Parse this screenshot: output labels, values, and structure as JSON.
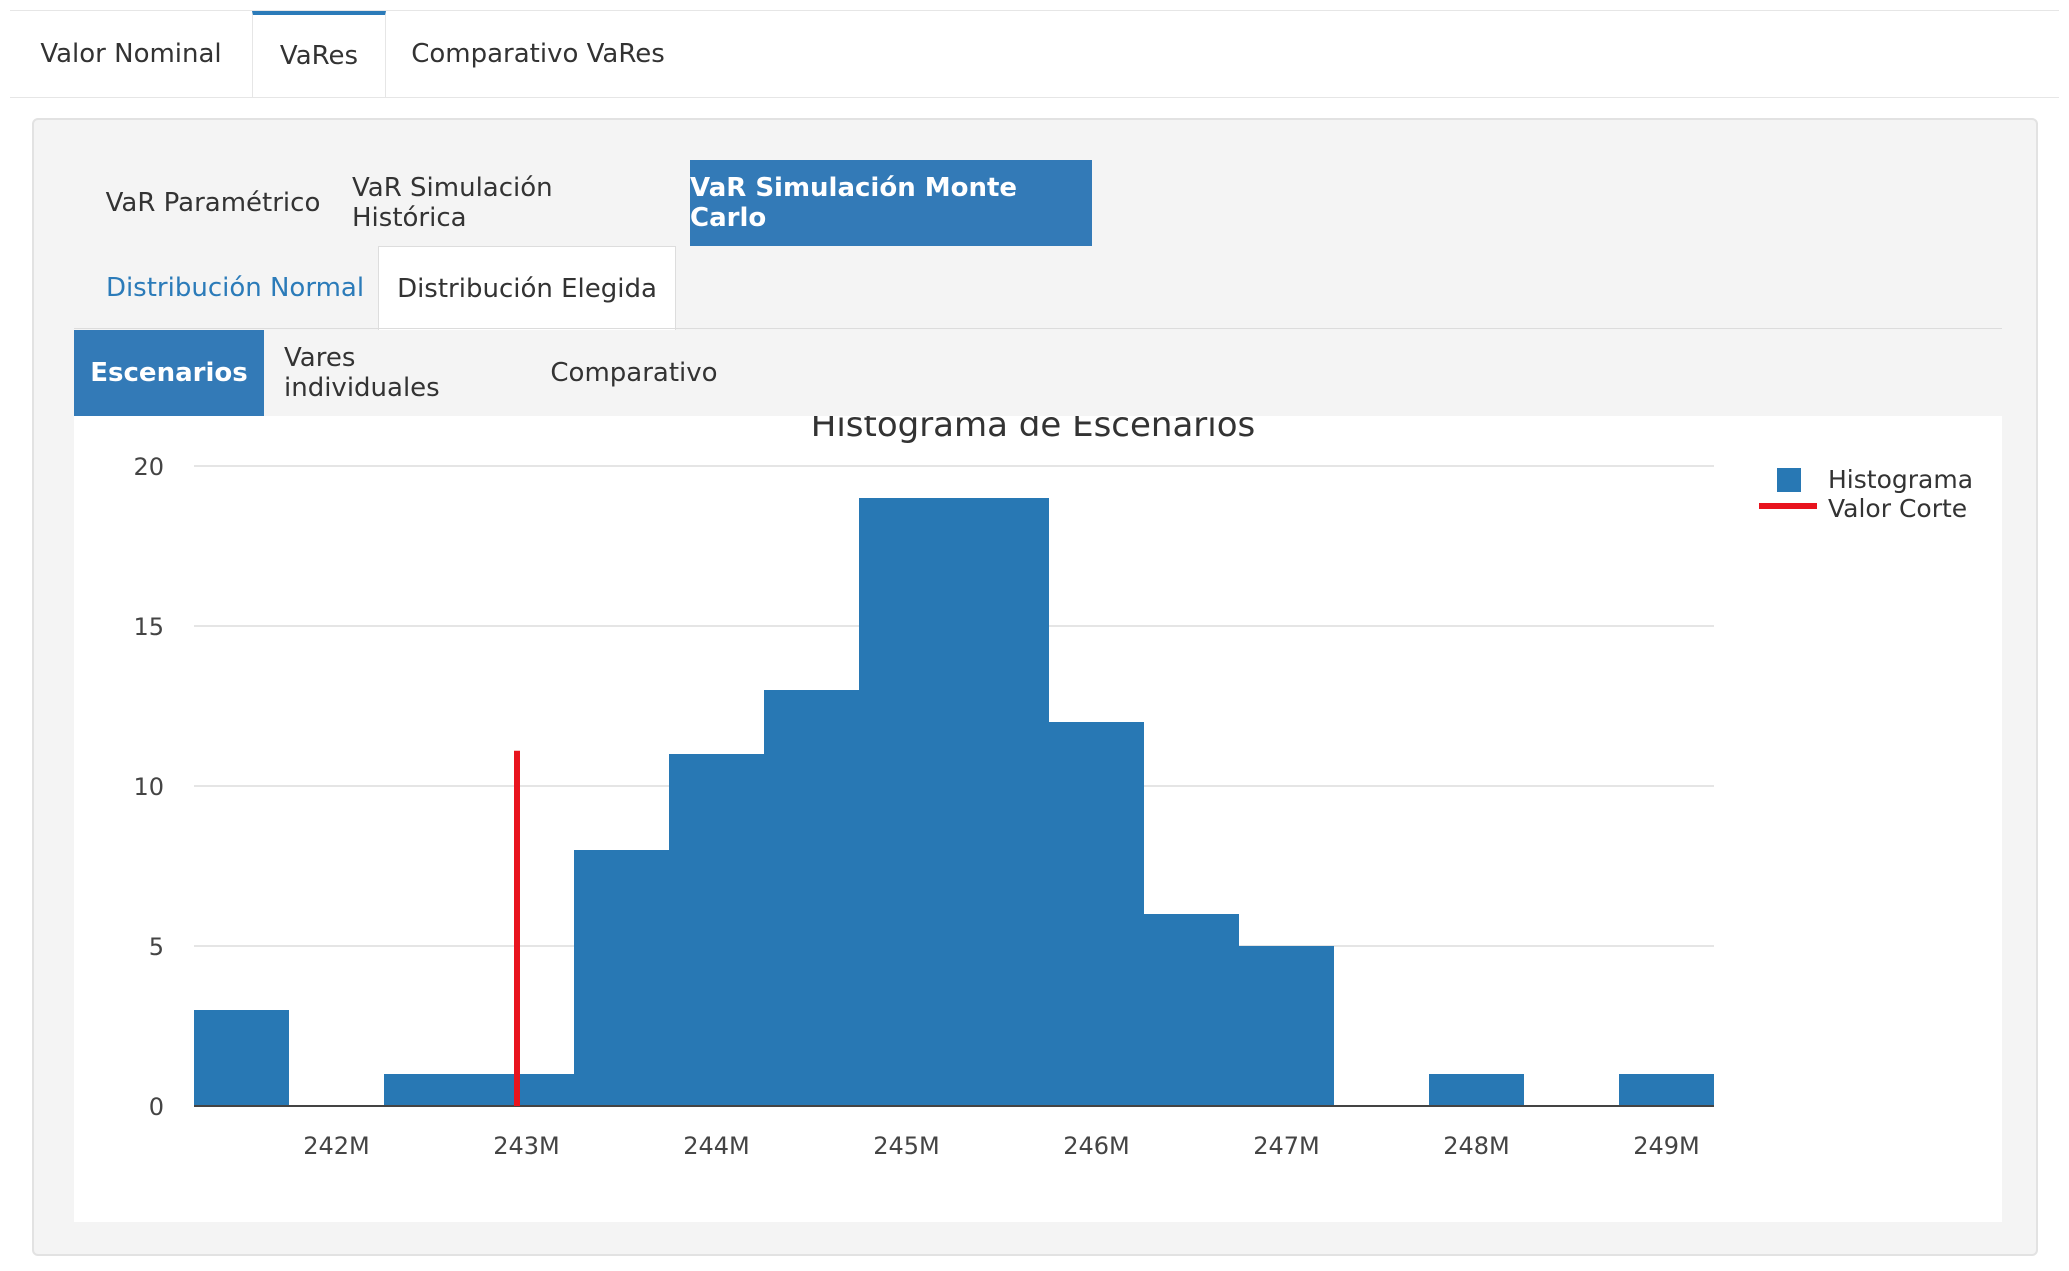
{
  "top_tabs": [
    {
      "label": "Valor Nominal"
    },
    {
      "label": "VaRes"
    },
    {
      "label": "Comparativo VaRes"
    }
  ],
  "var_tabs": [
    {
      "label": "VaR Paramétrico"
    },
    {
      "label": "VaR Simulación Histórica"
    },
    {
      "label": "VaR Simulación Monte Carlo"
    }
  ],
  "dist_tabs": [
    {
      "label": "Distribución Normal"
    },
    {
      "label": "Distribución Elegida"
    }
  ],
  "result_tabs": [
    {
      "label": "Escenarios"
    },
    {
      "label": "Vares individuales"
    },
    {
      "label": "Comparativo"
    }
  ],
  "colors": {
    "accent": "#337ab7",
    "bar": "#2878b4",
    "cutoff": "#e8141e"
  },
  "chart_data": {
    "type": "bar",
    "title": "Histograma de Escenarios",
    "xlabel": "",
    "ylabel": "",
    "bin_width_millions": 0.5,
    "bins": [
      {
        "start": 241.25,
        "count": 3
      },
      {
        "start": 241.75,
        "count": 0
      },
      {
        "start": 242.25,
        "count": 1
      },
      {
        "start": 242.75,
        "count": 1
      },
      {
        "start": 243.25,
        "count": 8
      },
      {
        "start": 243.75,
        "count": 11
      },
      {
        "start": 244.25,
        "count": 13
      },
      {
        "start": 244.75,
        "count": 19
      },
      {
        "start": 245.25,
        "count": 19
      },
      {
        "start": 245.75,
        "count": 12
      },
      {
        "start": 246.25,
        "count": 6
      },
      {
        "start": 246.75,
        "count": 5
      },
      {
        "start": 247.25,
        "count": 0
      },
      {
        "start": 247.75,
        "count": 1
      },
      {
        "start": 248.25,
        "count": 0
      },
      {
        "start": 248.75,
        "count": 1
      }
    ],
    "xlim": [
      241.25,
      249.25
    ],
    "ylim": [
      0,
      20
    ],
    "x_ticks": [
      {
        "value": 242,
        "label": "242M"
      },
      {
        "value": 243,
        "label": "243M"
      },
      {
        "value": 244,
        "label": "244M"
      },
      {
        "value": 245,
        "label": "245M"
      },
      {
        "value": 246,
        "label": "246M"
      },
      {
        "value": 247,
        "label": "247M"
      },
      {
        "value": 248,
        "label": "248M"
      },
      {
        "value": 249,
        "label": "249M"
      }
    ],
    "y_ticks": [
      0,
      5,
      10,
      15,
      20
    ],
    "cutoff": {
      "x": 242.95,
      "y_top": 11.1
    },
    "legend": {
      "placement": "top-right",
      "entries": [
        {
          "name": "Histograma",
          "kind": "bar"
        },
        {
          "name": "Valor Corte",
          "kind": "line"
        }
      ]
    },
    "grid": true
  }
}
